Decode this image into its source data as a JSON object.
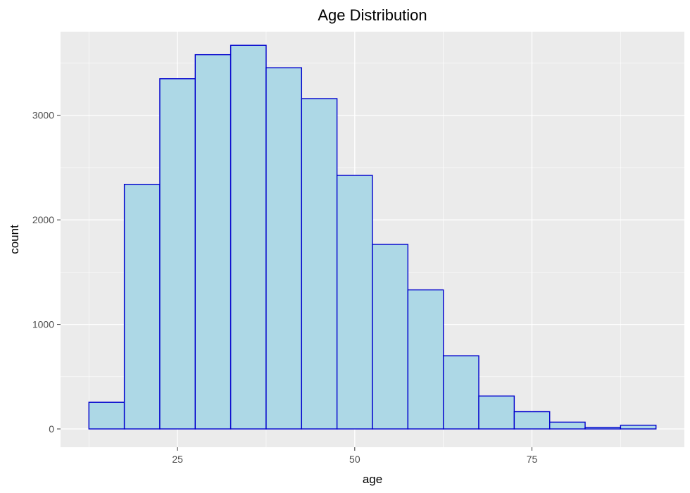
{
  "chart_data": {
    "type": "bar",
    "subtype": "histogram",
    "title": "Age Distribution",
    "xlabel": "age",
    "ylabel": "count",
    "bin_width": 5,
    "bins": [
      {
        "start": 12.5,
        "end": 17.5,
        "count": 255
      },
      {
        "start": 17.5,
        "end": 22.5,
        "count": 2340
      },
      {
        "start": 22.5,
        "end": 27.5,
        "count": 3350
      },
      {
        "start": 27.5,
        "end": 32.5,
        "count": 3580
      },
      {
        "start": 32.5,
        "end": 37.5,
        "count": 3670
      },
      {
        "start": 37.5,
        "end": 42.5,
        "count": 3455
      },
      {
        "start": 42.5,
        "end": 47.5,
        "count": 3160
      },
      {
        "start": 47.5,
        "end": 52.5,
        "count": 2425
      },
      {
        "start": 52.5,
        "end": 57.5,
        "count": 1765
      },
      {
        "start": 57.5,
        "end": 62.5,
        "count": 1330
      },
      {
        "start": 62.5,
        "end": 67.5,
        "count": 700
      },
      {
        "start": 67.5,
        "end": 72.5,
        "count": 315
      },
      {
        "start": 72.5,
        "end": 77.5,
        "count": 165
      },
      {
        "start": 77.5,
        "end": 82.5,
        "count": 65
      },
      {
        "start": 82.5,
        "end": 87.5,
        "count": 15
      },
      {
        "start": 87.5,
        "end": 92.5,
        "count": 35
      }
    ],
    "xlim": [
      8.5,
      96.5
    ],
    "ylim": [
      -175,
      3800
    ],
    "x_ticks": [
      25,
      50,
      75
    ],
    "y_ticks": [
      0,
      1000,
      2000,
      3000
    ],
    "x_tick_labels": [
      "25",
      "50",
      "75"
    ],
    "y_tick_labels": [
      "0",
      "1000",
      "2000",
      "3000"
    ],
    "bar_fill": "#add8e6",
    "bar_outline": "#0000cd",
    "panel_background": "#ebebeb",
    "grid": true
  }
}
